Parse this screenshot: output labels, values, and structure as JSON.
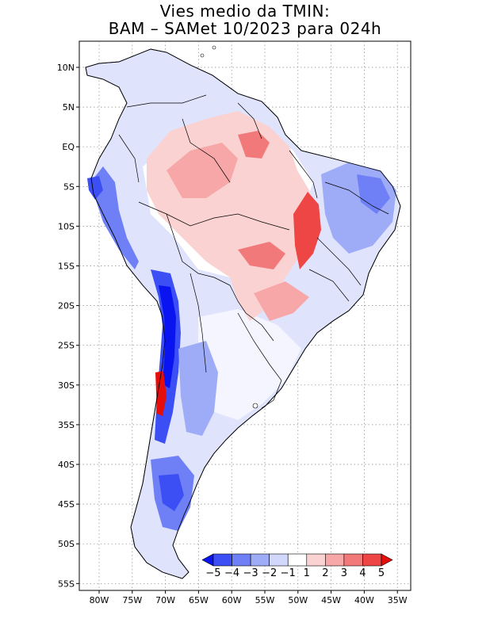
{
  "title": {
    "line1": "Vies medio da TMIN:",
    "line2": "BAM – SAMet 10/2023  para 024h"
  },
  "map": {
    "lat_labels": [
      "10N",
      "5N",
      "EQ",
      "5S",
      "10S",
      "15S",
      "20S",
      "25S",
      "30S",
      "35S",
      "40S",
      "45S",
      "50S",
      "55S"
    ],
    "lon_labels": [
      "80W",
      "75W",
      "70W",
      "65W",
      "60W",
      "55W",
      "50W",
      "45W",
      "40W",
      "35W"
    ],
    "lon_range": [
      -83,
      -34
    ],
    "lat_range": [
      -56,
      13
    ],
    "grid": true
  },
  "colorbar": {
    "labels": [
      "−5",
      "−4",
      "−3",
      "−2",
      "−1",
      "1",
      "2",
      "3",
      "4",
      "5"
    ],
    "colors": [
      "#0a14f0",
      "#3c4ff5",
      "#6f80f7",
      "#9eacf7",
      "#d2d8fb",
      "#ffffff",
      "#fbd2d2",
      "#f7a7a7",
      "#f27979",
      "#ee4545",
      "#e60d0d"
    ]
  }
}
